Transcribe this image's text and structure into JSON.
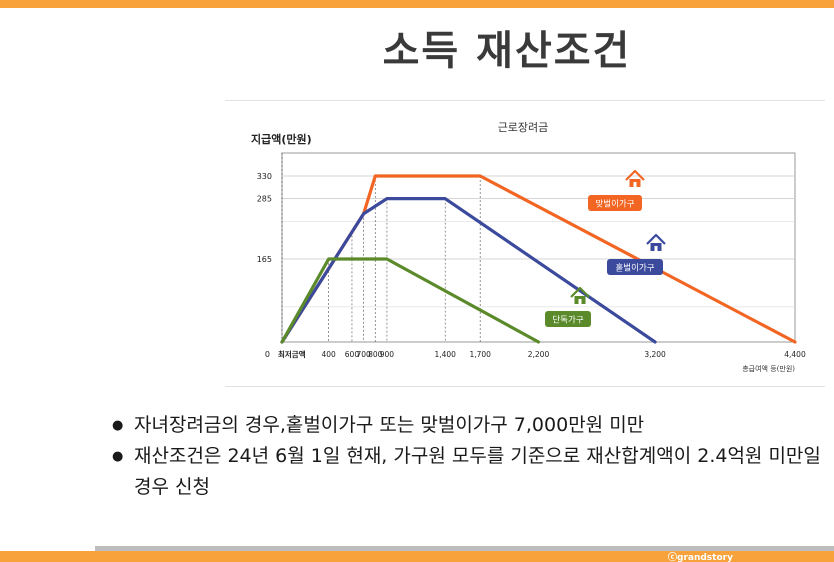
{
  "slide": {
    "title": "소득 재산조건",
    "bullets": [
      "자녀장려금의 경우,홑벌이가구 또는 맞벌이가구 7,000만원 미만",
      "재산조건은 24년 6월 1일 현재, 가구원 모두를 기준으로 재산합계액이 2.4억원 미만일 경우 신청"
    ],
    "credit": "ⓒgrandstory"
  },
  "colors": {
    "accent": "#f7a23a",
    "dual_income": "#f26522",
    "single_income": "#3b4a9c",
    "single_person": "#5a8a2a"
  },
  "chart_data": {
    "type": "line",
    "title": "근로장려금",
    "ylabel": "지급액(만원)",
    "xlabel": "총급여액 등(만원)",
    "xlim": [
      0,
      4400
    ],
    "ylim": [
      0,
      380
    ],
    "grid": true,
    "y_ticks": [
      {
        "value": 0,
        "label": "0"
      },
      {
        "value": 165,
        "label": "165"
      },
      {
        "value": 285,
        "label": "285"
      },
      {
        "value": 330,
        "label": "330"
      }
    ],
    "x_ticks": [
      {
        "value": 0,
        "label": "최저금액"
      },
      {
        "value": 400,
        "label": "400"
      },
      {
        "value": 600,
        "label": "600"
      },
      {
        "value": 700,
        "label": "700"
      },
      {
        "value": 800,
        "label": "800"
      },
      {
        "value": 900,
        "label": "900"
      },
      {
        "value": 1400,
        "label": "1,400"
      },
      {
        "value": 1700,
        "label": "1,700"
      },
      {
        "value": 2200,
        "label": "2,200"
      },
      {
        "value": 3200,
        "label": "3,200"
      },
      {
        "value": 4400,
        "label": "4,400"
      }
    ],
    "series": [
      {
        "name": "맞벌이가구",
        "x": [
          0,
          700,
          800,
          1700,
          4400
        ],
        "y": [
          0,
          255,
          330,
          330,
          0
        ]
      },
      {
        "name": "홑벌이가구",
        "x": [
          0,
          700,
          900,
          1400,
          3200
        ],
        "y": [
          0,
          255,
          285,
          285,
          0
        ]
      },
      {
        "name": "단독가구",
        "x": [
          0,
          400,
          900,
          2200
        ],
        "y": [
          0,
          165,
          165,
          0
        ]
      }
    ]
  }
}
